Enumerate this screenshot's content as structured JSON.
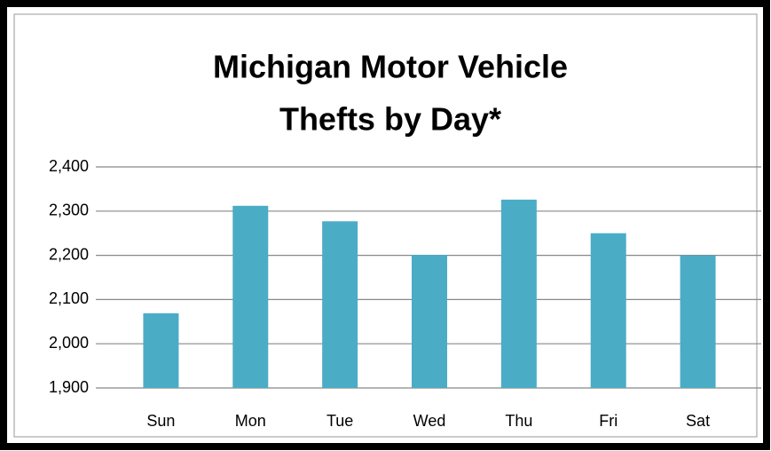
{
  "chart_data": {
    "type": "bar",
    "title": [
      "Michigan Motor Vehicle",
      "Thefts by Day*"
    ],
    "categories": [
      "Sun",
      "Mon",
      "Tue",
      "Wed",
      "Thu",
      "Fri",
      "Sat"
    ],
    "values": [
      2069,
      2312,
      2277,
      2201,
      2326,
      2250,
      2200
    ],
    "color": "#4bacc6",
    "ylim": [
      1900,
      2400
    ],
    "yticks": [
      {
        "value": 1900,
        "label": "1,900"
      },
      {
        "value": 2000,
        "label": "2,000"
      },
      {
        "value": 2100,
        "label": "2,100"
      },
      {
        "value": 2200,
        "label": "2,200"
      },
      {
        "value": 2300,
        "label": "2,300"
      },
      {
        "value": 2400,
        "label": "2,400"
      }
    ],
    "grid": true
  }
}
